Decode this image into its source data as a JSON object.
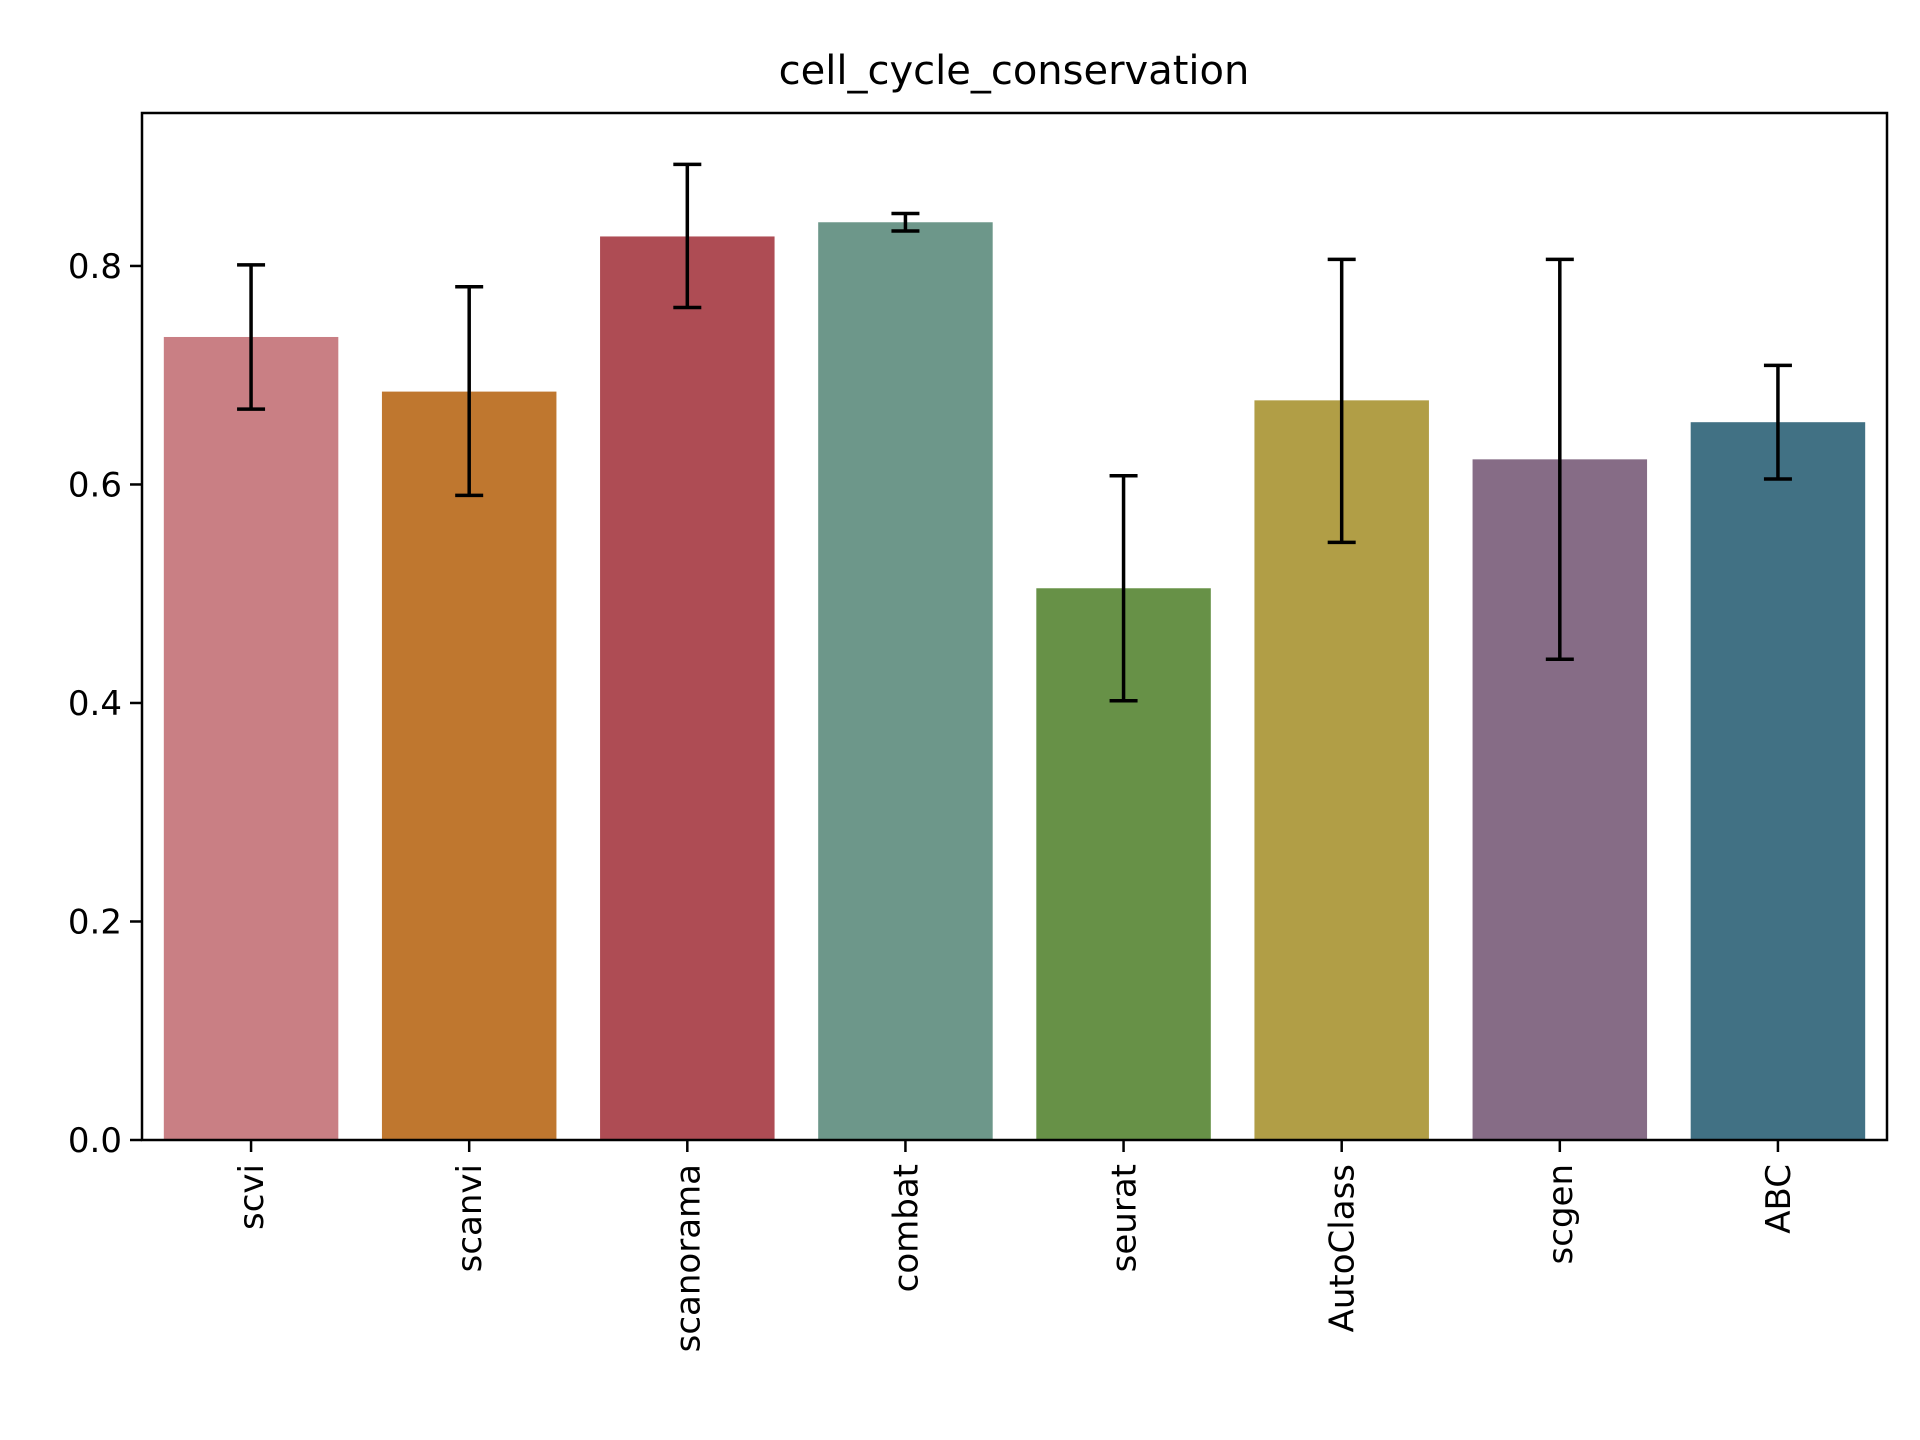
{
  "chart_data": {
    "type": "bar",
    "title": "cell_cycle_conservation",
    "xlabel": "",
    "ylabel": "",
    "categories": [
      "scvi",
      "scanvi",
      "scanorama",
      "combat",
      "seurat",
      "AutoClass",
      "scgen",
      "ABC"
    ],
    "values": [
      0.735,
      0.685,
      0.827,
      0.84,
      0.505,
      0.677,
      0.623,
      0.657
    ],
    "error_low": [
      0.669,
      0.59,
      0.762,
      0.832,
      0.402,
      0.547,
      0.44,
      0.605
    ],
    "error_high": [
      0.801,
      0.781,
      0.893,
      0.848,
      0.608,
      0.806,
      0.806,
      0.709
    ],
    "colors": [
      "#c97f84",
      "#bf772f",
      "#ae4c54",
      "#6d978a",
      "#679147",
      "#b19e46",
      "#866c86",
      "#417184"
    ],
    "ylim": [
      0,
      0.94
    ],
    "yticks": [
      0.0,
      0.2,
      0.4,
      0.6,
      0.8
    ],
    "ytick_labels": [
      "0.0",
      "0.2",
      "0.4",
      "0.6",
      "0.8"
    ],
    "grid": false,
    "legend": "none"
  }
}
